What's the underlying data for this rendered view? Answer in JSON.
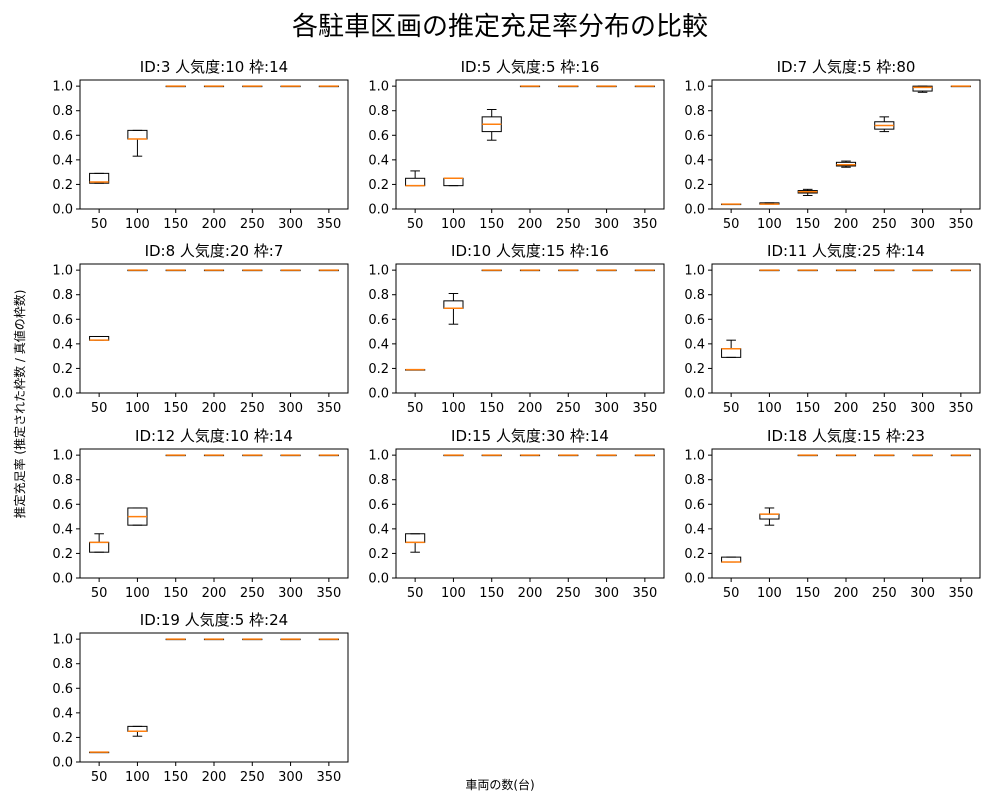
{
  "figure": {
    "title": "各駐車区画の推定充足率分布の比較",
    "xlabel": "車両の数(台)",
    "ylabel": "推定充足率 (推定された枠数 / 真値の枠数)"
  },
  "colors": {
    "box": "#000000",
    "median": "#ff7f0e",
    "axes": "#000000",
    "background": "#ffffff"
  },
  "chart_data": [
    {
      "type": "box",
      "title": "ID:3 人気度:10 枠:14",
      "categories": [
        "50",
        "100",
        "150",
        "200",
        "250",
        "300",
        "350"
      ],
      "ylim": [
        0,
        1.05
      ],
      "yticks": [
        "0.0",
        "0.2",
        "0.4",
        "0.6",
        "0.8",
        "1.0"
      ],
      "boxes": [
        {
          "q1": 0.21,
          "median": 0.22,
          "q3": 0.29,
          "wlo": 0.21,
          "whi": 0.29
        },
        {
          "q1": 0.57,
          "median": 0.57,
          "q3": 0.64,
          "wlo": 0.43,
          "whi": 0.64
        },
        {
          "q1": 1,
          "median": 1,
          "q3": 1,
          "wlo": 1,
          "whi": 1
        },
        {
          "q1": 1,
          "median": 1,
          "q3": 1,
          "wlo": 1,
          "whi": 1
        },
        {
          "q1": 1,
          "median": 1,
          "q3": 1,
          "wlo": 1,
          "whi": 1
        },
        {
          "q1": 1,
          "median": 1,
          "q3": 1,
          "wlo": 1,
          "whi": 1
        },
        {
          "q1": 1,
          "median": 1,
          "q3": 1,
          "wlo": 1,
          "whi": 1
        }
      ]
    },
    {
      "type": "box",
      "title": "ID:5 人気度:5 枠:16",
      "categories": [
        "50",
        "100",
        "150",
        "200",
        "250",
        "300",
        "350"
      ],
      "ylim": [
        0,
        1.05
      ],
      "yticks": [
        "0.0",
        "0.2",
        "0.4",
        "0.6",
        "0.8",
        "1.0"
      ],
      "boxes": [
        {
          "q1": 0.19,
          "median": 0.19,
          "q3": 0.25,
          "wlo": 0.19,
          "whi": 0.31
        },
        {
          "q1": 0.19,
          "median": 0.25,
          "q3": 0.25,
          "wlo": 0.19,
          "whi": 0.25
        },
        {
          "q1": 0.63,
          "median": 0.69,
          "q3": 0.75,
          "wlo": 0.56,
          "whi": 0.81
        },
        {
          "q1": 1,
          "median": 1,
          "q3": 1,
          "wlo": 1,
          "whi": 1
        },
        {
          "q1": 1,
          "median": 1,
          "q3": 1,
          "wlo": 1,
          "whi": 1
        },
        {
          "q1": 1,
          "median": 1,
          "q3": 1,
          "wlo": 1,
          "whi": 1
        },
        {
          "q1": 1,
          "median": 1,
          "q3": 1,
          "wlo": 1,
          "whi": 1
        }
      ]
    },
    {
      "type": "box",
      "title": "ID:7 人気度:5 枠:80",
      "categories": [
        "50",
        "100",
        "150",
        "200",
        "250",
        "300",
        "350"
      ],
      "ylim": [
        0,
        1.05
      ],
      "yticks": [
        "0.0",
        "0.2",
        "0.4",
        "0.6",
        "0.8",
        "1.0"
      ],
      "boxes": [
        {
          "q1": 0.04,
          "median": 0.04,
          "q3": 0.04,
          "wlo": 0.04,
          "whi": 0.04
        },
        {
          "q1": 0.04,
          "median": 0.04,
          "q3": 0.05,
          "wlo": 0.04,
          "whi": 0.05
        },
        {
          "q1": 0.13,
          "median": 0.14,
          "q3": 0.15,
          "wlo": 0.11,
          "whi": 0.16
        },
        {
          "q1": 0.35,
          "median": 0.36,
          "q3": 0.38,
          "wlo": 0.34,
          "whi": 0.39
        },
        {
          "q1": 0.65,
          "median": 0.68,
          "q3": 0.71,
          "wlo": 0.63,
          "whi": 0.75
        },
        {
          "q1": 0.96,
          "median": 0.99,
          "q3": 1.0,
          "wlo": 0.95,
          "whi": 1.0
        },
        {
          "q1": 1,
          "median": 1,
          "q3": 1,
          "wlo": 1,
          "whi": 1
        }
      ]
    },
    {
      "type": "box",
      "title": "ID:8 人気度:20 枠:7",
      "categories": [
        "50",
        "100",
        "150",
        "200",
        "250",
        "300",
        "350"
      ],
      "ylim": [
        0,
        1.05
      ],
      "yticks": [
        "0.0",
        "0.2",
        "0.4",
        "0.6",
        "0.8",
        "1.0"
      ],
      "boxes": [
        {
          "q1": 0.43,
          "median": 0.43,
          "q3": 0.46,
          "wlo": 0.43,
          "whi": 0.46
        },
        {
          "q1": 1,
          "median": 1,
          "q3": 1,
          "wlo": 1,
          "whi": 1
        },
        {
          "q1": 1,
          "median": 1,
          "q3": 1,
          "wlo": 1,
          "whi": 1
        },
        {
          "q1": 1,
          "median": 1,
          "q3": 1,
          "wlo": 1,
          "whi": 1
        },
        {
          "q1": 1,
          "median": 1,
          "q3": 1,
          "wlo": 1,
          "whi": 1
        },
        {
          "q1": 1,
          "median": 1,
          "q3": 1,
          "wlo": 1,
          "whi": 1
        },
        {
          "q1": 1,
          "median": 1,
          "q3": 1,
          "wlo": 1,
          "whi": 1
        }
      ]
    },
    {
      "type": "box",
      "title": "ID:10 人気度:15 枠:16",
      "categories": [
        "50",
        "100",
        "150",
        "200",
        "250",
        "300",
        "350"
      ],
      "ylim": [
        0,
        1.05
      ],
      "yticks": [
        "0.0",
        "0.2",
        "0.4",
        "0.6",
        "0.8",
        "1.0"
      ],
      "boxes": [
        {
          "q1": 0.19,
          "median": 0.19,
          "q3": 0.19,
          "wlo": 0.19,
          "whi": 0.19
        },
        {
          "q1": 0.69,
          "median": 0.69,
          "q3": 0.75,
          "wlo": 0.56,
          "whi": 0.81
        },
        {
          "q1": 1,
          "median": 1,
          "q3": 1,
          "wlo": 1,
          "whi": 1
        },
        {
          "q1": 1,
          "median": 1,
          "q3": 1,
          "wlo": 1,
          "whi": 1
        },
        {
          "q1": 1,
          "median": 1,
          "q3": 1,
          "wlo": 1,
          "whi": 1
        },
        {
          "q1": 1,
          "median": 1,
          "q3": 1,
          "wlo": 1,
          "whi": 1
        },
        {
          "q1": 1,
          "median": 1,
          "q3": 1,
          "wlo": 1,
          "whi": 1
        }
      ]
    },
    {
      "type": "box",
      "title": "ID:11 人気度:25 枠:14",
      "categories": [
        "50",
        "100",
        "150",
        "200",
        "250",
        "300",
        "350"
      ],
      "ylim": [
        0,
        1.05
      ],
      "yticks": [
        "0.0",
        "0.2",
        "0.4",
        "0.6",
        "0.8",
        "1.0"
      ],
      "boxes": [
        {
          "q1": 0.29,
          "median": 0.36,
          "q3": 0.36,
          "wlo": 0.29,
          "whi": 0.43
        },
        {
          "q1": 1,
          "median": 1,
          "q3": 1,
          "wlo": 1,
          "whi": 1
        },
        {
          "q1": 1,
          "median": 1,
          "q3": 1,
          "wlo": 1,
          "whi": 1
        },
        {
          "q1": 1,
          "median": 1,
          "q3": 1,
          "wlo": 1,
          "whi": 1
        },
        {
          "q1": 1,
          "median": 1,
          "q3": 1,
          "wlo": 1,
          "whi": 1
        },
        {
          "q1": 1,
          "median": 1,
          "q3": 1,
          "wlo": 1,
          "whi": 1
        },
        {
          "q1": 1,
          "median": 1,
          "q3": 1,
          "wlo": 1,
          "whi": 1
        }
      ]
    },
    {
      "type": "box",
      "title": "ID:12 人気度:10 枠:14",
      "categories": [
        "50",
        "100",
        "150",
        "200",
        "250",
        "300",
        "350"
      ],
      "ylim": [
        0,
        1.05
      ],
      "yticks": [
        "0.0",
        "0.2",
        "0.4",
        "0.6",
        "0.8",
        "1.0"
      ],
      "boxes": [
        {
          "q1": 0.21,
          "median": 0.29,
          "q3": 0.29,
          "wlo": 0.21,
          "whi": 0.36
        },
        {
          "q1": 0.43,
          "median": 0.5,
          "q3": 0.57,
          "wlo": 0.43,
          "whi": 0.57
        },
        {
          "q1": 1,
          "median": 1,
          "q3": 1,
          "wlo": 1,
          "whi": 1
        },
        {
          "q1": 1,
          "median": 1,
          "q3": 1,
          "wlo": 1,
          "whi": 1
        },
        {
          "q1": 1,
          "median": 1,
          "q3": 1,
          "wlo": 1,
          "whi": 1
        },
        {
          "q1": 1,
          "median": 1,
          "q3": 1,
          "wlo": 1,
          "whi": 1
        },
        {
          "q1": 1,
          "median": 1,
          "q3": 1,
          "wlo": 1,
          "whi": 1
        }
      ]
    },
    {
      "type": "box",
      "title": "ID:15 人気度:30 枠:14",
      "categories": [
        "50",
        "100",
        "150",
        "200",
        "250",
        "300",
        "350"
      ],
      "ylim": [
        0,
        1.05
      ],
      "yticks": [
        "0.0",
        "0.2",
        "0.4",
        "0.6",
        "0.8",
        "1.0"
      ],
      "boxes": [
        {
          "q1": 0.29,
          "median": 0.29,
          "q3": 0.36,
          "wlo": 0.21,
          "whi": 0.36
        },
        {
          "q1": 1,
          "median": 1,
          "q3": 1,
          "wlo": 1,
          "whi": 1
        },
        {
          "q1": 1,
          "median": 1,
          "q3": 1,
          "wlo": 1,
          "whi": 1
        },
        {
          "q1": 1,
          "median": 1,
          "q3": 1,
          "wlo": 1,
          "whi": 1
        },
        {
          "q1": 1,
          "median": 1,
          "q3": 1,
          "wlo": 1,
          "whi": 1
        },
        {
          "q1": 1,
          "median": 1,
          "q3": 1,
          "wlo": 1,
          "whi": 1
        },
        {
          "q1": 1,
          "median": 1,
          "q3": 1,
          "wlo": 1,
          "whi": 1
        }
      ]
    },
    {
      "type": "box",
      "title": "ID:18 人気度:15 枠:23",
      "categories": [
        "50",
        "100",
        "150",
        "200",
        "250",
        "300",
        "350"
      ],
      "ylim": [
        0,
        1.05
      ],
      "yticks": [
        "0.0",
        "0.2",
        "0.4",
        "0.6",
        "0.8",
        "1.0"
      ],
      "boxes": [
        {
          "q1": 0.13,
          "median": 0.13,
          "q3": 0.17,
          "wlo": 0.13,
          "whi": 0.17
        },
        {
          "q1": 0.48,
          "median": 0.52,
          "q3": 0.52,
          "wlo": 0.43,
          "whi": 0.57
        },
        {
          "q1": 1,
          "median": 1,
          "q3": 1,
          "wlo": 1,
          "whi": 1
        },
        {
          "q1": 1,
          "median": 1,
          "q3": 1,
          "wlo": 1,
          "whi": 1
        },
        {
          "q1": 1,
          "median": 1,
          "q3": 1,
          "wlo": 1,
          "whi": 1
        },
        {
          "q1": 1,
          "median": 1,
          "q3": 1,
          "wlo": 1,
          "whi": 1
        },
        {
          "q1": 1,
          "median": 1,
          "q3": 1,
          "wlo": 1,
          "whi": 1
        }
      ]
    },
    {
      "type": "box",
      "title": "ID:19 人気度:5 枠:24",
      "categories": [
        "50",
        "100",
        "150",
        "200",
        "250",
        "300",
        "350"
      ],
      "ylim": [
        0,
        1.05
      ],
      "yticks": [
        "0.0",
        "0.2",
        "0.4",
        "0.6",
        "0.8",
        "1.0"
      ],
      "boxes": [
        {
          "q1": 0.08,
          "median": 0.08,
          "q3": 0.08,
          "wlo": 0.08,
          "whi": 0.08
        },
        {
          "q1": 0.25,
          "median": 0.25,
          "q3": 0.29,
          "wlo": 0.21,
          "whi": 0.29
        },
        {
          "q1": 1,
          "median": 1,
          "q3": 1,
          "wlo": 1,
          "whi": 1
        },
        {
          "q1": 1,
          "median": 1,
          "q3": 1,
          "wlo": 1,
          "whi": 1
        },
        {
          "q1": 1,
          "median": 1,
          "q3": 1,
          "wlo": 1,
          "whi": 1
        },
        {
          "q1": 1,
          "median": 1,
          "q3": 1,
          "wlo": 1,
          "whi": 1
        },
        {
          "q1": 1,
          "median": 1,
          "q3": 1,
          "wlo": 1,
          "whi": 1
        }
      ]
    }
  ]
}
